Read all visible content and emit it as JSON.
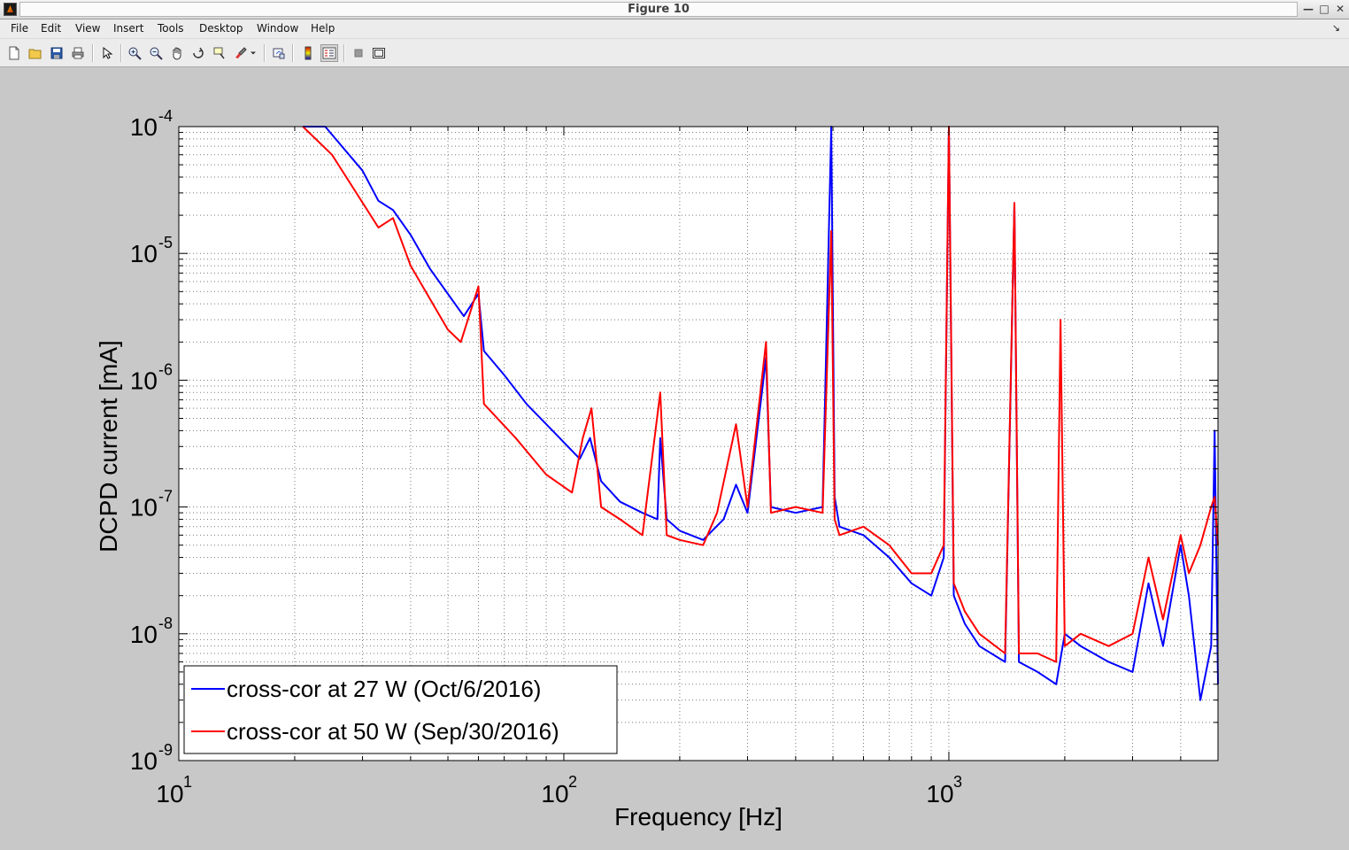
{
  "window": {
    "title": "Figure 10",
    "buttons": [
      "—",
      "□",
      "✕"
    ]
  },
  "menu": [
    "File",
    "Edit",
    "View",
    "Insert",
    "Tools",
    "Desktop",
    "Window",
    "Help"
  ],
  "toolbar": {
    "icons": [
      "new-figure-icon",
      "open-file-icon",
      "save-icon",
      "print-icon",
      "edit-plot-arrow-icon",
      "zoom-in-icon",
      "zoom-out-icon",
      "pan-hand-icon",
      "rotate-3d-icon",
      "data-cursor-icon",
      "brush-icon",
      "link-plot-icon",
      "insert-colorbar-icon",
      "insert-legend-icon",
      "hide-plot-tools-icon",
      "show-plot-tools-icon"
    ]
  },
  "colors": {
    "series1": "#0000ff",
    "series2": "#ff0000",
    "figure_bg": "#c8c8c8",
    "axes_bg": "#ffffff"
  },
  "chart_data": {
    "type": "line",
    "xscale": "log",
    "yscale": "log",
    "xlim": [
      10,
      5000
    ],
    "ylim": [
      1e-09,
      0.0001
    ],
    "xlabel": "Frequency [Hz]",
    "ylabel": "DCPD current [mA]",
    "x_ticks": [
      {
        "base": "10",
        "exp": "1"
      },
      {
        "base": "10",
        "exp": "2"
      },
      {
        "base": "10",
        "exp": "3"
      }
    ],
    "y_ticks": [
      {
        "base": "10",
        "exp": "-4"
      },
      {
        "base": "10",
        "exp": "-5"
      },
      {
        "base": "10",
        "exp": "-6"
      },
      {
        "base": "10",
        "exp": "-7"
      },
      {
        "base": "10",
        "exp": "-8"
      },
      {
        "base": "10",
        "exp": "-9"
      }
    ],
    "grid": true,
    "legend_position": "bottom-left",
    "series": [
      {
        "name": "cross-cor at 27 W (Oct/6/2016)",
        "color": "#0000ff",
        "points": [
          [
            21,
            0.00012
          ],
          [
            24,
            0.0001
          ],
          [
            30,
            4.5e-05
          ],
          [
            33,
            2.6e-05
          ],
          [
            36,
            2.2e-05
          ],
          [
            40,
            1.4e-05
          ],
          [
            45,
            7.5e-06
          ],
          [
            55,
            3.2e-06
          ],
          [
            60,
            4.8e-06
          ],
          [
            62,
            1.7e-06
          ],
          [
            70,
            1.1e-06
          ],
          [
            80,
            6.5e-07
          ],
          [
            95,
            3.8e-07
          ],
          [
            110,
            2.4e-07
          ],
          [
            117,
            3.5e-07
          ],
          [
            125,
            1.6e-07
          ],
          [
            140,
            1.1e-07
          ],
          [
            160,
            9e-08
          ],
          [
            175,
            8e-08
          ],
          [
            178,
            3.5e-07
          ],
          [
            185,
            8e-08
          ],
          [
            200,
            6.5e-08
          ],
          [
            230,
            5.5e-08
          ],
          [
            260,
            8e-08
          ],
          [
            280,
            1.5e-07
          ],
          [
            300,
            9e-08
          ],
          [
            335,
            1.5e-06
          ],
          [
            345,
            1e-07
          ],
          [
            400,
            9e-08
          ],
          [
            470,
            1e-07
          ],
          [
            495,
            0.0001
          ],
          [
            505,
            1.2e-07
          ],
          [
            520,
            7e-08
          ],
          [
            600,
            6e-08
          ],
          [
            700,
            4e-08
          ],
          [
            800,
            2.5e-08
          ],
          [
            900,
            2e-08
          ],
          [
            970,
            4e-08
          ],
          [
            1000,
            0.0001
          ],
          [
            1030,
            2e-08
          ],
          [
            1100,
            1.2e-08
          ],
          [
            1200,
            8e-09
          ],
          [
            1400,
            6e-09
          ],
          [
            1480,
            2.5e-05
          ],
          [
            1520,
            6e-09
          ],
          [
            1700,
            5e-09
          ],
          [
            1900,
            4e-09
          ],
          [
            2000,
            1e-08
          ],
          [
            2200,
            8e-09
          ],
          [
            2600,
            6e-09
          ],
          [
            3000,
            5e-09
          ],
          [
            3300,
            2.5e-08
          ],
          [
            3600,
            8e-09
          ],
          [
            4000,
            5e-08
          ],
          [
            4200,
            2e-08
          ],
          [
            4500,
            3e-09
          ],
          [
            4800,
            8e-09
          ],
          [
            4900,
            4e-07
          ],
          [
            5000,
            4e-09
          ]
        ]
      },
      {
        "name": "cross-cor at 50 W (Sep/30/2016)",
        "color": "#ff0000",
        "points": [
          [
            21,
            0.0001
          ],
          [
            25,
            6e-05
          ],
          [
            33,
            1.6e-05
          ],
          [
            36,
            1.9e-05
          ],
          [
            40,
            8e-06
          ],
          [
            50,
            2.5e-06
          ],
          [
            54,
            2e-06
          ],
          [
            60,
            5.5e-06
          ],
          [
            62,
            6.5e-07
          ],
          [
            75,
            3.5e-07
          ],
          [
            90,
            1.8e-07
          ],
          [
            105,
            1.3e-07
          ],
          [
            112,
            3.5e-07
          ],
          [
            118,
            6e-07
          ],
          [
            125,
            1e-07
          ],
          [
            140,
            8e-08
          ],
          [
            160,
            6e-08
          ],
          [
            178,
            8e-07
          ],
          [
            185,
            6e-08
          ],
          [
            200,
            5.5e-08
          ],
          [
            230,
            5e-08
          ],
          [
            250,
            9e-08
          ],
          [
            280,
            4.5e-07
          ],
          [
            300,
            1e-07
          ],
          [
            335,
            2e-06
          ],
          [
            345,
            9e-08
          ],
          [
            400,
            1e-07
          ],
          [
            470,
            9e-08
          ],
          [
            495,
            1.5e-05
          ],
          [
            505,
            8e-08
          ],
          [
            520,
            6e-08
          ],
          [
            600,
            7e-08
          ],
          [
            700,
            5e-08
          ],
          [
            800,
            3e-08
          ],
          [
            900,
            3e-08
          ],
          [
            970,
            5e-08
          ],
          [
            1000,
            0.0001
          ],
          [
            1030,
            2.5e-08
          ],
          [
            1100,
            1.5e-08
          ],
          [
            1200,
            1e-08
          ],
          [
            1400,
            7e-09
          ],
          [
            1480,
            2.5e-05
          ],
          [
            1520,
            7e-09
          ],
          [
            1700,
            7e-09
          ],
          [
            1900,
            6e-09
          ],
          [
            1950,
            3e-06
          ],
          [
            2000,
            8e-09
          ],
          [
            2200,
            1e-08
          ],
          [
            2600,
            8e-09
          ],
          [
            3000,
            1e-08
          ],
          [
            3300,
            4e-08
          ],
          [
            3600,
            1.3e-08
          ],
          [
            4000,
            6e-08
          ],
          [
            4200,
            3e-08
          ],
          [
            4500,
            5e-08
          ],
          [
            4800,
            1e-07
          ],
          [
            4900,
            1.2e-07
          ],
          [
            5000,
            5e-08
          ]
        ]
      }
    ]
  }
}
